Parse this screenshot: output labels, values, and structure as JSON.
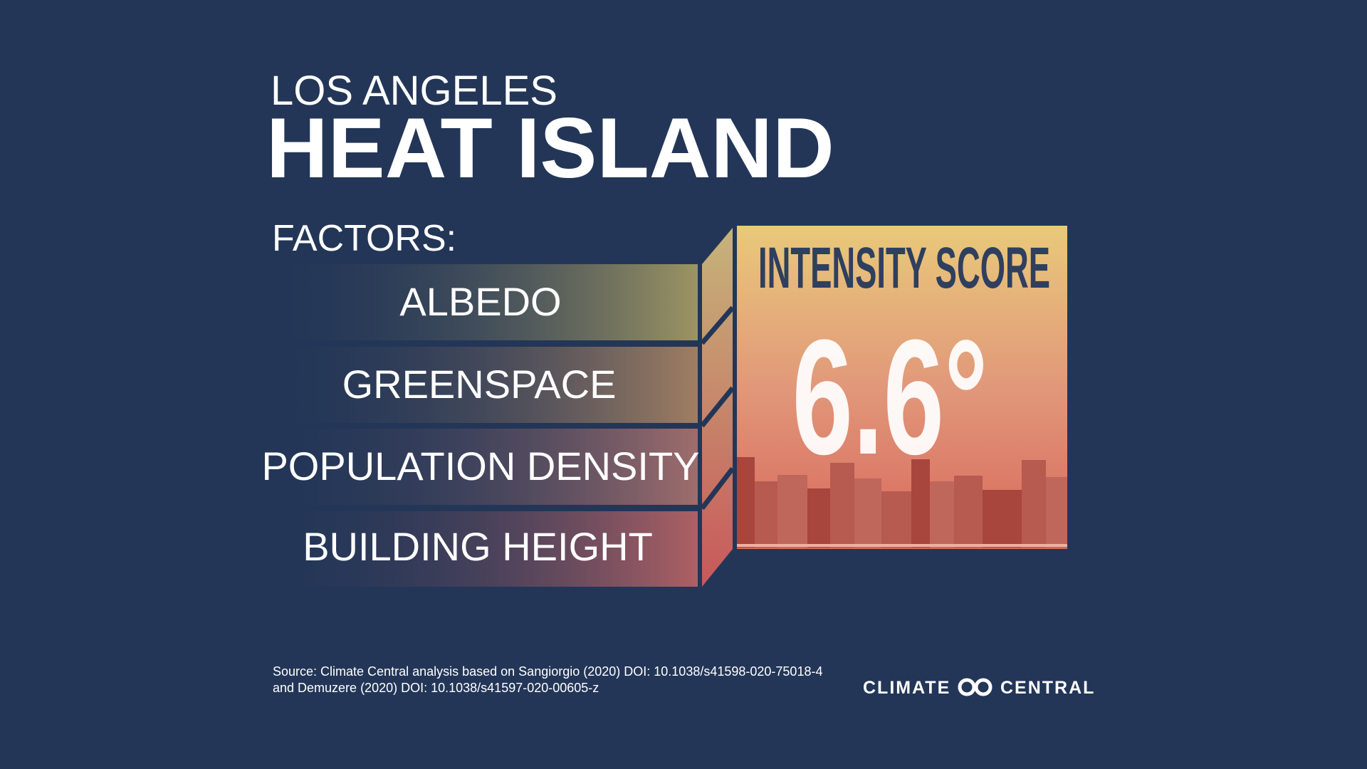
{
  "header": {
    "subtitle": "LOS ANGELES",
    "title": "HEAT ISLAND"
  },
  "factors": {
    "label": "FACTORS:",
    "items": [
      "ALBEDO",
      "GREENSPACE",
      "POPULATION DENSITY",
      "BUILDING HEIGHT"
    ]
  },
  "score": {
    "label": "INTENSITY SCORE",
    "value": "6.6°"
  },
  "footer": {
    "source_lines": [
      "Source: Climate Central  analysis based on Sangiorgio (2020) DOI: 10.1038/s41598-020-75018-4",
      "and Demuzere (2020)  DOI: 10.1038/s41597-020-00605-z"
    ],
    "logo_left": "CLIMATE",
    "logo_right": "CENTRAL"
  }
}
